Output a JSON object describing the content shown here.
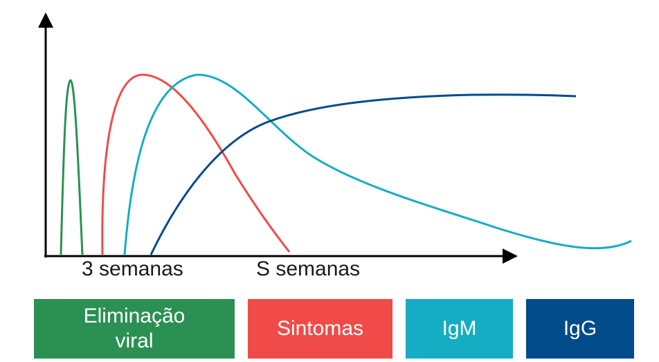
{
  "chart_data": {
    "type": "line",
    "title": "",
    "xlabel": "",
    "ylabel": "",
    "x_tick_labels": [
      "3 semanas",
      "S semanas"
    ],
    "grid": false,
    "legend_placement": "bottom",
    "series": [
      {
        "name": "Eliminação\nviral",
        "color": "#2a9152"
      },
      {
        "name": "Sintomas",
        "color": "#f04b48"
      },
      {
        "name": "IgM",
        "color": "#15adc3"
      },
      {
        "name": "IgG",
        "color": "#024b8b"
      }
    ]
  }
}
